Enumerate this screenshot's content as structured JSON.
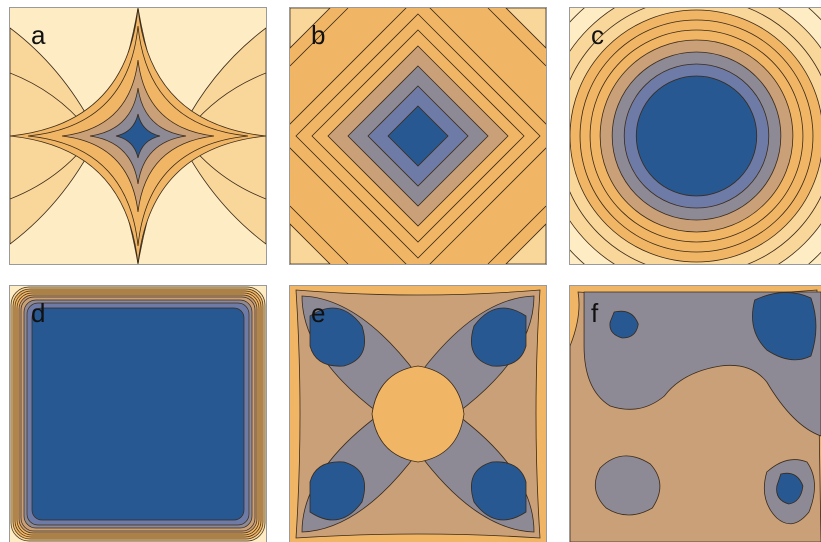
{
  "colors": {
    "pale": "#fdecc4",
    "light": "#f9d79a",
    "orange": "#f1b665",
    "tan": "#c9a077",
    "mauve": "#8e8a95",
    "slate": "#6e7ba7",
    "blue": "#275891",
    "contour": "#3a2a1a"
  },
  "panels": [
    {
      "id": "a",
      "label": "a"
    },
    {
      "id": "b",
      "label": "b"
    },
    {
      "id": "c",
      "label": "c"
    },
    {
      "id": "d",
      "label": "d"
    },
    {
      "id": "e",
      "label": "e"
    },
    {
      "id": "f",
      "label": "f"
    }
  ]
}
